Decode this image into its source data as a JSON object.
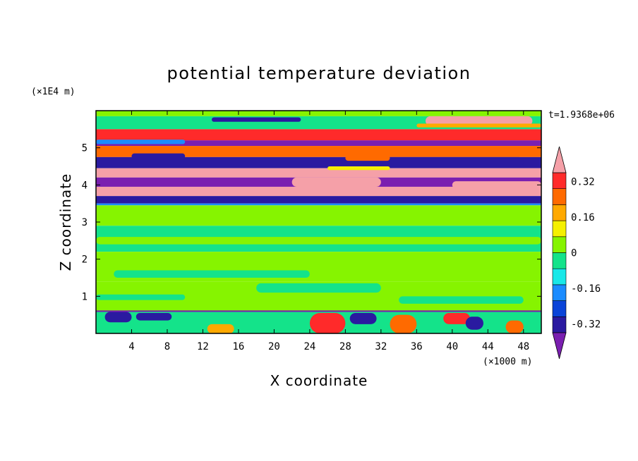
{
  "chart_data": {
    "type": "heatmap",
    "title": "potential temperature deviation",
    "xlabel": "X coordinate",
    "ylabel": "Z coordinate",
    "x_unit": "(×1000 m)",
    "y_unit": "(×1E4 m)",
    "time_label": "t=1.9368e+06",
    "xlim": [
      0,
      50
    ],
    "ylim": [
      0,
      6
    ],
    "x_ticks": [
      "4",
      "8",
      "12",
      "16",
      "20",
      "24",
      "28",
      "32",
      "36",
      "40",
      "44",
      "48"
    ],
    "x_tick_values": [
      4,
      8,
      12,
      16,
      20,
      24,
      28,
      32,
      36,
      40,
      44,
      48
    ],
    "y_ticks": [
      "1",
      "2",
      "3",
      "4",
      "5"
    ],
    "y_tick_values": [
      1,
      2,
      3,
      4,
      5
    ],
    "colorbar": {
      "levels": [
        -0.4,
        -0.36,
        -0.32,
        -0.28,
        -0.24,
        -0.2,
        -0.16,
        -0.12,
        -0.08,
        -0.04,
        0,
        0.04,
        0.08,
        0.12,
        0.16,
        0.2,
        0.24,
        0.28,
        0.32,
        0.36,
        0.4
      ],
      "labels": [
        "-0.32",
        "-0.16",
        "0",
        "0.16",
        "0.32"
      ],
      "label_values": [
        -0.32,
        -0.16,
        0,
        0.16,
        0.32
      ],
      "colors": [
        "#7a1fb0",
        "#2a1aa0",
        "#0a44d8",
        "#1b8cff",
        "#19e8e8",
        "#14e38a",
        "#86f400",
        "#f5f000",
        "#ffa900",
        "#ff6a00",
        "#ff2a2a",
        "#f5a0a8"
      ]
    },
    "field_bands": [
      {
        "z0": 5.85,
        "z1": 6.0,
        "value": 0.02
      },
      {
        "z0": 5.5,
        "z1": 5.85,
        "value": -0.06
      },
      {
        "z0": 5.2,
        "z1": 5.5,
        "value": 0.35
      },
      {
        "z0": 5.05,
        "z1": 5.2,
        "value": -0.38
      },
      {
        "z0": 4.75,
        "z1": 5.05,
        "value": 0.22
      },
      {
        "z0": 4.45,
        "z1": 4.75,
        "value": -0.3
      },
      {
        "z0": 4.2,
        "z1": 4.45,
        "value": 0.38
      },
      {
        "z0": 3.95,
        "z1": 4.2,
        "value": -0.38
      },
      {
        "z0": 3.7,
        "z1": 3.95,
        "value": 0.38
      },
      {
        "z0": 3.5,
        "z1": 3.7,
        "value": -0.34
      },
      {
        "z0": 3.45,
        "z1": 3.5,
        "value": -0.2
      },
      {
        "z0": 2.9,
        "z1": 3.45,
        "value": 0.02
      },
      {
        "z0": 2.2,
        "z1": 2.9,
        "value": -0.04
      },
      {
        "z0": 1.4,
        "z1": 2.2,
        "value": 0.02
      },
      {
        "z0": 0.6,
        "z1": 1.4,
        "value": 0.03
      },
      {
        "z0": 0.0,
        "z1": 0.6,
        "value": -0.02
      }
    ],
    "field_patches": [
      {
        "x": 37,
        "z": 5.6,
        "w": 12,
        "h": 0.25,
        "value": 0.38
      },
      {
        "x": 36,
        "z": 5.55,
        "w": 14,
        "h": 0.1,
        "value": 0.18
      },
      {
        "x": 13,
        "z": 5.7,
        "w": 10,
        "h": 0.12,
        "value": -0.32
      },
      {
        "x": 0,
        "z": 5.1,
        "w": 10,
        "h": 0.12,
        "value": -0.2
      },
      {
        "x": 4,
        "z": 4.7,
        "w": 6,
        "h": 0.15,
        "value": -0.36
      },
      {
        "x": 30,
        "z": 4.5,
        "w": 18,
        "h": 0.25,
        "value": -0.34
      },
      {
        "x": 28,
        "z": 4.65,
        "w": 5,
        "h": 0.15,
        "value": 0.25
      },
      {
        "x": 22,
        "z": 3.95,
        "w": 10,
        "h": 0.25,
        "value": 0.38
      },
      {
        "x": 40,
        "z": 3.9,
        "w": 10,
        "h": 0.2,
        "value": 0.38
      },
      {
        "x": 26,
        "z": 4.4,
        "w": 7,
        "h": 0.1,
        "value": 0.12
      },
      {
        "x": 0,
        "z": 2.4,
        "w": 50,
        "h": 0.2,
        "value": 0.03
      },
      {
        "x": 2,
        "z": 1.5,
        "w": 22,
        "h": 0.2,
        "value": -0.04
      },
      {
        "x": 18,
        "z": 1.1,
        "w": 14,
        "h": 0.25,
        "value": -0.05
      },
      {
        "x": 0,
        "z": 0.9,
        "w": 10,
        "h": 0.15,
        "value": -0.04
      },
      {
        "x": 34,
        "z": 0.8,
        "w": 14,
        "h": 0.2,
        "value": -0.04
      },
      {
        "x": 1,
        "z": 0.3,
        "w": 3,
        "h": 0.28,
        "value": -0.3
      },
      {
        "x": 4.5,
        "z": 0.35,
        "w": 4,
        "h": 0.2,
        "value": -0.36
      },
      {
        "x": 12.5,
        "z": 0.0,
        "w": 3,
        "h": 0.25,
        "value": 0.16
      },
      {
        "x": 24,
        "z": 0.0,
        "w": 4,
        "h": 0.55,
        "value": 0.3
      },
      {
        "x": 28.5,
        "z": 0.25,
        "w": 3,
        "h": 0.3,
        "value": -0.3
      },
      {
        "x": 33,
        "z": 0.0,
        "w": 3,
        "h": 0.5,
        "value": 0.24
      },
      {
        "x": 39,
        "z": 0.25,
        "w": 3,
        "h": 0.3,
        "value": 0.3
      },
      {
        "x": 41.5,
        "z": 0.1,
        "w": 2,
        "h": 0.35,
        "value": -0.3
      },
      {
        "x": 46,
        "z": 0.0,
        "w": 2,
        "h": 0.35,
        "value": 0.24
      },
      {
        "x": 0,
        "z": 0.58,
        "w": 50,
        "h": 0.04,
        "value": -0.38
      }
    ]
  }
}
